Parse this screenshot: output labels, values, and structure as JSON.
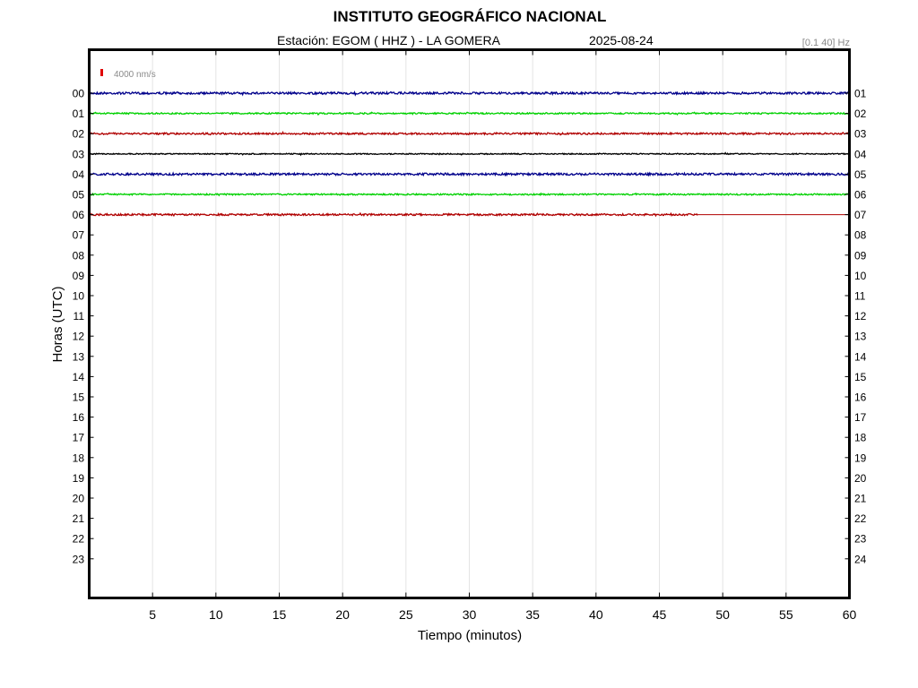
{
  "header": {
    "title": "INSTITUTO GEOGRÁFICO NACIONAL",
    "station": "Estación:  EGOM ( HHZ ) - LA GOMERA",
    "date": "2025-08-24",
    "filter": "[0.1 40] Hz"
  },
  "chart_data": {
    "type": "line",
    "xlabel": "Tiempo (minutos)",
    "ylabel": "Horas (UTC)",
    "xlim": [
      0,
      60
    ],
    "x_ticks": [
      5,
      10,
      15,
      20,
      25,
      30,
      35,
      40,
      45,
      50,
      55,
      60
    ],
    "left_ticks": [
      "00",
      "01",
      "02",
      "03",
      "04",
      "05",
      "06",
      "07",
      "08",
      "09",
      "10",
      "11",
      "12",
      "13",
      "14",
      "15",
      "16",
      "17",
      "18",
      "19",
      "20",
      "21",
      "22",
      "23"
    ],
    "right_ticks": [
      "01",
      "02",
      "03",
      "04",
      "05",
      "06",
      "07",
      "08",
      "09",
      "10",
      "11",
      "12",
      "13",
      "14",
      "15",
      "16",
      "17",
      "18",
      "19",
      "20",
      "21",
      "22",
      "23",
      "24"
    ],
    "grid": "vertical",
    "scale_label": "4000 nm/s",
    "scale_color": "#e00000",
    "series": [
      {
        "hour": "00",
        "color": "#00008b",
        "end_minute": 60,
        "amplitude": 1.2
      },
      {
        "hour": "01",
        "color": "#00d000",
        "end_minute": 60,
        "amplitude": 0.8
      },
      {
        "hour": "02",
        "color": "#b00000",
        "end_minute": 60,
        "amplitude": 1.0
      },
      {
        "hour": "03",
        "color": "#000000",
        "end_minute": 60,
        "amplitude": 0.6
      },
      {
        "hour": "04",
        "color": "#00008b",
        "end_minute": 60,
        "amplitude": 1.2
      },
      {
        "hour": "05",
        "color": "#00d000",
        "end_minute": 60,
        "amplitude": 0.8
      },
      {
        "hour": "06",
        "color": "#b00000",
        "end_minute": 48,
        "amplitude": 1.0
      }
    ]
  }
}
